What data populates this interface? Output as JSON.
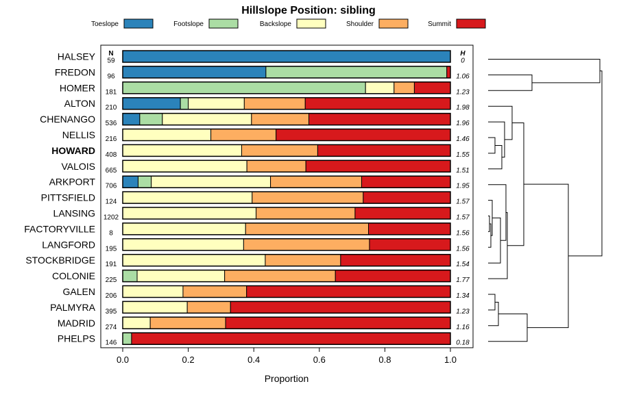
{
  "chart_data": {
    "type": "bar",
    "stacked": true,
    "orientation": "horizontal",
    "title": "Hillslope Position: sibling",
    "xlabel": "Proportion",
    "ylabel": "",
    "xlim": [
      0,
      1
    ],
    "x_ticks": [
      "0.0",
      "0.2",
      "0.4",
      "0.6",
      "0.8",
      "1.0"
    ],
    "x_tick_values": [
      0,
      0.2,
      0.4,
      0.6,
      0.8,
      1.0
    ],
    "n_header": "N",
    "h_header": "H",
    "highlight": "HOWARD",
    "legend_position": "top",
    "series": [
      {
        "name": "Toeslope",
        "color": "#2b83ba"
      },
      {
        "name": "Footslope",
        "color": "#abdda4"
      },
      {
        "name": "Backslope",
        "color": "#ffffbf"
      },
      {
        "name": "Shoulder",
        "color": "#fdae61"
      },
      {
        "name": "Summit",
        "color": "#d7191c"
      }
    ],
    "rows": [
      {
        "name": "HALSEY",
        "n": "59",
        "h": "0",
        "values": [
          1.0,
          0,
          0,
          0,
          0
        ]
      },
      {
        "name": "FREDON",
        "n": "96",
        "h": "1.06",
        "values": [
          0.437,
          0.552,
          0,
          0,
          0.011
        ]
      },
      {
        "name": "HOMER",
        "n": "181",
        "h": "1.23",
        "values": [
          0,
          0.741,
          0.087,
          0.062,
          0.11
        ]
      },
      {
        "name": "ALTON",
        "n": "210",
        "h": "1.98",
        "values": [
          0.176,
          0.024,
          0.171,
          0.186,
          0.443
        ]
      },
      {
        "name": "CHENANGO",
        "n": "536",
        "h": "1.96",
        "values": [
          0.052,
          0.069,
          0.272,
          0.175,
          0.432
        ]
      },
      {
        "name": "NELLIS",
        "n": "216",
        "h": "1.46",
        "values": [
          0,
          0,
          0.269,
          0.199,
          0.532
        ]
      },
      {
        "name": "HOWARD",
        "n": "408",
        "h": "1.55",
        "values": [
          0,
          0,
          0.363,
          0.232,
          0.405
        ]
      },
      {
        "name": "VALOIS",
        "n": "665",
        "h": "1.51",
        "values": [
          0,
          0,
          0.379,
          0.18,
          0.441
        ]
      },
      {
        "name": "ARKPORT",
        "n": "706",
        "h": "1.95",
        "values": [
          0.047,
          0.04,
          0.364,
          0.278,
          0.271
        ]
      },
      {
        "name": "PITTSFIELD",
        "n": "124",
        "h": "1.57",
        "values": [
          0,
          0,
          0.395,
          0.339,
          0.266
        ]
      },
      {
        "name": "LANSING",
        "n": "1202",
        "h": "1.57",
        "values": [
          0,
          0,
          0.407,
          0.302,
          0.291
        ]
      },
      {
        "name": "FACTORYVILLE",
        "n": "8",
        "h": "1.56",
        "values": [
          0,
          0,
          0.375,
          0.375,
          0.25
        ]
      },
      {
        "name": "LANGFORD",
        "n": "195",
        "h": "1.56",
        "values": [
          0,
          0,
          0.369,
          0.384,
          0.247
        ]
      },
      {
        "name": "STOCKBRIDGE",
        "n": "191",
        "h": "1.54",
        "values": [
          0,
          0,
          0.435,
          0.23,
          0.335
        ]
      },
      {
        "name": "COLONIE",
        "n": "225",
        "h": "1.77",
        "values": [
          0,
          0.044,
          0.267,
          0.338,
          0.351
        ]
      },
      {
        "name": "GALEN",
        "n": "206",
        "h": "1.34",
        "values": [
          0,
          0,
          0.184,
          0.194,
          0.622
        ]
      },
      {
        "name": "PALMYRA",
        "n": "395",
        "h": "1.23",
        "values": [
          0,
          0,
          0.197,
          0.132,
          0.671
        ]
      },
      {
        "name": "MADRID",
        "n": "274",
        "h": "1.16",
        "values": [
          0,
          0,
          0.084,
          0.23,
          0.686
        ]
      },
      {
        "name": "PHELPS",
        "n": "146",
        "h": "0.18",
        "values": [
          0,
          0.027,
          0,
          0,
          0.973
        ]
      }
    ],
    "dendrogram": "hierarchical clustering of series by hillslope position proportions"
  }
}
